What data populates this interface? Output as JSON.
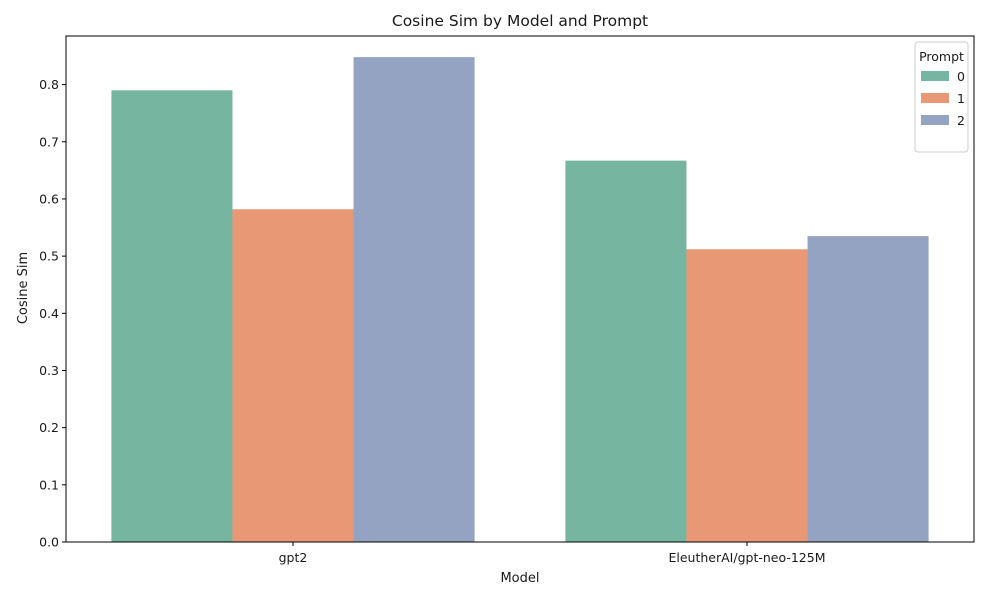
{
  "chart_data": {
    "type": "bar",
    "title": "Cosine Sim by Model and Prompt",
    "xlabel": "Model",
    "ylabel": "Cosine Sim",
    "categories": [
      "gpt2",
      "EleutherAI/gpt-neo-125M"
    ],
    "series": [
      {
        "name": "0",
        "values": [
          0.79,
          0.667
        ],
        "color": "#76b6a0"
      },
      {
        "name": "1",
        "values": [
          0.582,
          0.512
        ],
        "color": "#e89874"
      },
      {
        "name": "2",
        "values": [
          0.848,
          0.535
        ],
        "color": "#95a3c2"
      }
    ],
    "ylim": [
      0.0,
      0.885
    ],
    "yticks": [
      0.0,
      0.1,
      0.2,
      0.3,
      0.4,
      0.5,
      0.6,
      0.7,
      0.8
    ],
    "ytick_labels": [
      "0.0",
      "0.1",
      "0.2",
      "0.3",
      "0.4",
      "0.5",
      "0.6",
      "0.7",
      "0.8"
    ],
    "legend": {
      "title": "Prompt",
      "position": "top-right"
    },
    "grid": false
  }
}
